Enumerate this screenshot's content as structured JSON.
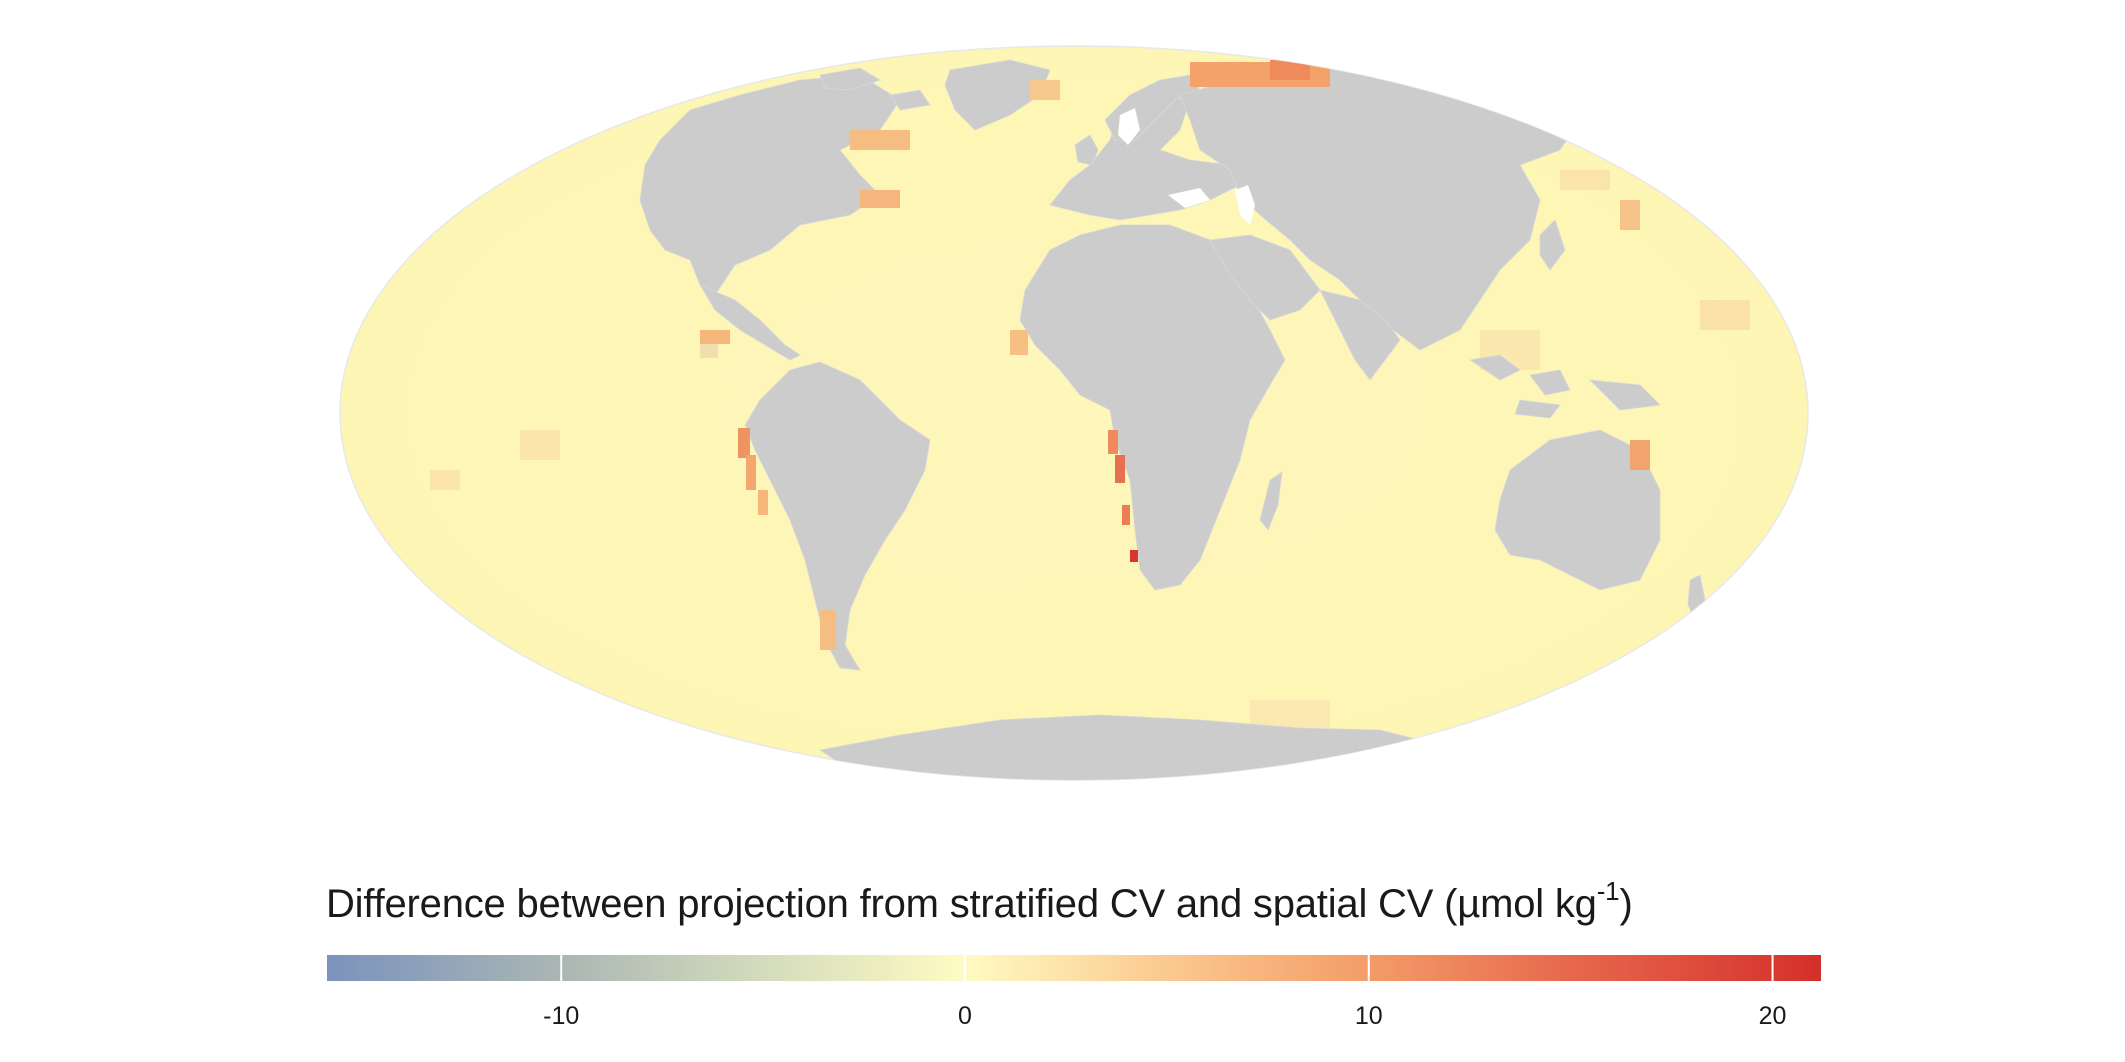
{
  "map": {
    "projection": "mollweide",
    "land_color": "#cccccc",
    "ocean_base_color": "#fdf6b6",
    "outline_color": "#e6e6e6"
  },
  "legend": {
    "title_main": "Difference between projection from stratified CV and spatial CV (µmol kg",
    "title_sup": "-1",
    "title_close": ")",
    "range": [
      -15.8,
      21.2
    ],
    "colors": [
      {
        "value": -15.8,
        "color": "#7b93bd"
      },
      {
        "value": -10,
        "color": "#abb6b4"
      },
      {
        "value": -5,
        "color": "#d3dcbc"
      },
      {
        "value": 0,
        "color": "#fffbc3"
      },
      {
        "value": 5,
        "color": "#fbc98f"
      },
      {
        "value": 10,
        "color": "#f39c68"
      },
      {
        "value": 15,
        "color": "#e7684d"
      },
      {
        "value": 21.2,
        "color": "#d42f2a"
      }
    ],
    "ticks": [
      {
        "value": -10,
        "label": "-10"
      },
      {
        "value": 0,
        "label": "0"
      },
      {
        "value": 10,
        "label": "10"
      },
      {
        "value": 20,
        "label": "20"
      }
    ]
  }
}
